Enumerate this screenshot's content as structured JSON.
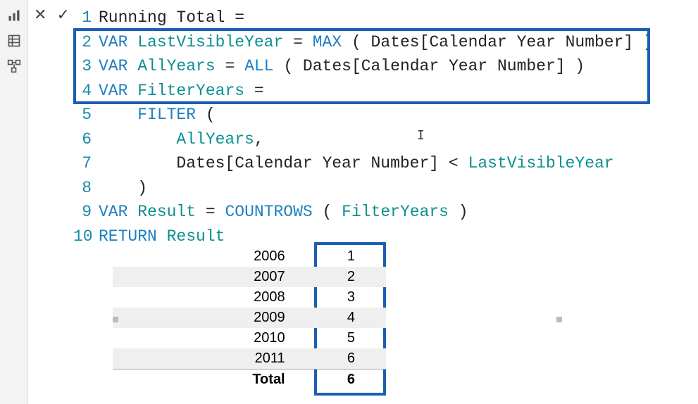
{
  "nav": {
    "icons": [
      "report-icon",
      "data-icon",
      "model-icon"
    ]
  },
  "formula_actions": {
    "cancel_glyph": "✕",
    "commit_glyph": "✓"
  },
  "code": {
    "lines": [
      {
        "num": "1",
        "tokens": [
          [
            "plain",
            "Running Total "
          ],
          [
            "op",
            "="
          ]
        ]
      },
      {
        "num": "2",
        "tokens": [
          [
            "kw",
            "VAR "
          ],
          [
            "var",
            "LastVisibleYear"
          ],
          [
            "plain",
            " "
          ],
          [
            "op",
            "="
          ],
          [
            "plain",
            " "
          ],
          [
            "func",
            "MAX"
          ],
          [
            "plain",
            " "
          ],
          [
            "op",
            "("
          ],
          [
            "plain",
            " Dates[Calendar Year Number] "
          ],
          [
            "op",
            ")"
          ]
        ]
      },
      {
        "num": "3",
        "tokens": [
          [
            "kw",
            "VAR "
          ],
          [
            "var",
            "AllYears"
          ],
          [
            "plain",
            " "
          ],
          [
            "op",
            "="
          ],
          [
            "plain",
            " "
          ],
          [
            "func",
            "ALL"
          ],
          [
            "plain",
            " "
          ],
          [
            "op",
            "("
          ],
          [
            "plain",
            " Dates[Calendar Year Number] "
          ],
          [
            "op",
            ")"
          ]
        ]
      },
      {
        "num": "4",
        "tokens": [
          [
            "kw",
            "VAR "
          ],
          [
            "var",
            "FilterYears"
          ],
          [
            "plain",
            " "
          ],
          [
            "op",
            "="
          ]
        ]
      },
      {
        "num": "5",
        "tokens": [
          [
            "plain",
            "    "
          ],
          [
            "func",
            "FILTER"
          ],
          [
            "plain",
            " "
          ],
          [
            "op",
            "("
          ]
        ]
      },
      {
        "num": "6",
        "tokens": [
          [
            "plain",
            "        "
          ],
          [
            "var",
            "AllYears"
          ],
          [
            "op",
            ","
          ]
        ]
      },
      {
        "num": "7",
        "tokens": [
          [
            "plain",
            "        Dates[Calendar Year Number] "
          ],
          [
            "op",
            "<"
          ],
          [
            "plain",
            " "
          ],
          [
            "var",
            "LastVisibleYear"
          ]
        ]
      },
      {
        "num": "8",
        "tokens": [
          [
            "plain",
            "    "
          ],
          [
            "op",
            ")"
          ]
        ]
      },
      {
        "num": "9",
        "tokens": [
          [
            "kw",
            "VAR "
          ],
          [
            "var",
            "Result"
          ],
          [
            "plain",
            " "
          ],
          [
            "op",
            "="
          ],
          [
            "plain",
            " "
          ],
          [
            "func",
            "COUNTROWS"
          ],
          [
            "plain",
            " "
          ],
          [
            "op",
            "("
          ],
          [
            "plain",
            " "
          ],
          [
            "var",
            "FilterYears"
          ],
          [
            "plain",
            " "
          ],
          [
            "op",
            ")"
          ]
        ]
      },
      {
        "num": "10",
        "tokens": [
          [
            "kw",
            "RETURN "
          ],
          [
            "var",
            "Result"
          ]
        ]
      }
    ]
  },
  "results": {
    "rows": [
      {
        "year": "2006",
        "value": "1",
        "alt": false
      },
      {
        "year": "2007",
        "value": "2",
        "alt": true
      },
      {
        "year": "2008",
        "value": "3",
        "alt": false
      },
      {
        "year": "2009",
        "value": "4",
        "alt": true
      },
      {
        "year": "2010",
        "value": "5",
        "alt": false
      },
      {
        "year": "2011",
        "value": "6",
        "alt": true
      }
    ],
    "total_label": "Total",
    "total_value": "6"
  },
  "highlight_colors": {
    "box_border": "#1a5fb4"
  }
}
